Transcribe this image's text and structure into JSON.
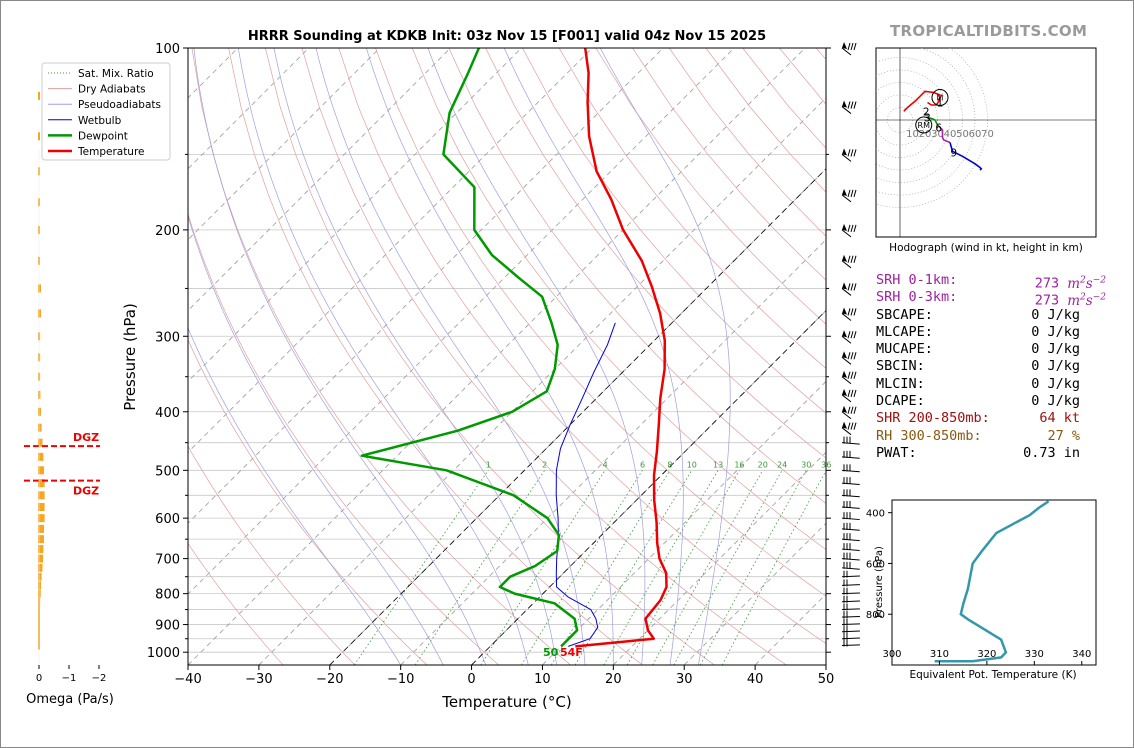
{
  "title": "HRRR Sounding at KDKB Init: 03z Nov 15 [F001] valid 04z Nov 15 2025",
  "brand": "TROPICALTIDBITS.COM",
  "legend": {
    "items": [
      {
        "label": "Sat. Mix. Ratio",
        "color": "#3a9a3a",
        "style": "dotted"
      },
      {
        "label": "Dry Adiabats",
        "color": "#e0a0a0",
        "style": "solid"
      },
      {
        "label": "Pseudoadiabats",
        "color": "#a0a0e0",
        "style": "solid"
      },
      {
        "label": "Wetbulb",
        "color": "#0000dd",
        "style": "solid"
      },
      {
        "label": "Dewpoint",
        "color": "#009900",
        "style": "solid"
      },
      {
        "label": "Temperature",
        "color": "#ee0000",
        "style": "solid"
      }
    ]
  },
  "surface_labels": {
    "dewpoint": "50",
    "temperature": "54F"
  },
  "mixing_ratio_labels": [
    "1",
    "2",
    "4",
    "6",
    "8",
    "10",
    "13",
    "16",
    "20",
    "24",
    "30",
    "36"
  ],
  "omega": {
    "xlabel": "Omega (Pa/s)",
    "ticks": [
      "0",
      "−1",
      "−2"
    ],
    "dgz_label": "DGZ"
  },
  "hodograph": {
    "caption": "Hodograph (wind in kt, height in km)",
    "ring_labels": [
      "10",
      "20",
      "30",
      "40",
      "50",
      "60",
      "70"
    ],
    "height_labels": [
      "1",
      "2",
      "3",
      "6",
      "9"
    ],
    "markers": [
      "M",
      "RM"
    ]
  },
  "stats": [
    {
      "label": "SRH 0-1km:",
      "value": "273",
      "unit": "m2s-2",
      "color": "#a020a0"
    },
    {
      "label": "SRH 0-3km:",
      "value": "273",
      "unit": "m2s-2",
      "color": "#a020a0"
    },
    {
      "label": "SBCAPE:",
      "value": "0 J/kg",
      "color": "#000000"
    },
    {
      "label": "MLCAPE:",
      "value": "0 J/kg",
      "color": "#000000"
    },
    {
      "label": "MUCAPE:",
      "value": "0 J/kg",
      "color": "#000000"
    },
    {
      "label": "SBCIN:",
      "value": "0 J/kg",
      "color": "#000000"
    },
    {
      "label": "MLCIN:",
      "value": "0 J/kg",
      "color": "#000000"
    },
    {
      "label": "DCAPE:",
      "value": "0 J/kg",
      "color": "#000000"
    },
    {
      "label": "SHR 200-850mb:",
      "value": "64 kt",
      "color": "#a01010"
    },
    {
      "label": "RH 300-850mb:",
      "value": "27 %",
      "color": "#8a5a10"
    },
    {
      "label": "PWAT:",
      "value": "0.73 in",
      "color": "#000000"
    }
  ],
  "chart_data": [
    {
      "type": "line",
      "title": "HRRR Sounding at KDKB Init: 03z Nov 15 [F001] valid 04z Nov 15 2025",
      "xlabel": "Temperature (°C)",
      "ylabel": "Pressure (hPa)",
      "xlim": [
        -40,
        50
      ],
      "ylim": [
        1050,
        100
      ],
      "y_scale": "log",
      "x_ticks": [
        "−40",
        "−30",
        "−20",
        "−10",
        "0",
        "10",
        "20",
        "30",
        "40",
        "50"
      ],
      "y_ticks": [
        "100",
        "200",
        "300",
        "400",
        "500",
        "600",
        "700",
        "800",
        "900",
        "1000"
      ],
      "skew": true,
      "legend_position": "top-left",
      "series": [
        {
          "name": "Temperature",
          "color": "#ee0000",
          "points": [
            [
              12,
              978
            ],
            [
              22,
              950
            ],
            [
              20,
              920
            ],
            [
              18,
              880
            ],
            [
              17.5,
              820
            ],
            [
              16.5,
              780
            ],
            [
              14.5,
              740
            ],
            [
              11.5,
              700
            ],
            [
              9,
              660
            ],
            [
              6,
              610
            ],
            [
              2.5,
              560
            ],
            [
              -1,
              510
            ],
            [
              -4,
              465
            ],
            [
              -7.5,
              420
            ],
            [
              -11,
              380
            ],
            [
              -14.5,
              340
            ],
            [
              -18.5,
              305
            ],
            [
              -23,
              275
            ],
            [
              -28,
              248
            ],
            [
              -33,
              225
            ],
            [
              -40,
              200
            ],
            [
              -46,
              178
            ],
            [
              -52,
              160
            ],
            [
              -58,
              140
            ],
            [
              -63,
              123
            ],
            [
              -67,
              110
            ],
            [
              -71,
              100
            ]
          ]
        },
        {
          "name": "Dewpoint",
          "color": "#009900",
          "points": [
            [
              10,
              978
            ],
            [
              10,
              950
            ],
            [
              10,
              920
            ],
            [
              8,
              880
            ],
            [
              3,
              830
            ],
            [
              -4,
              800
            ],
            [
              -7,
              780
            ],
            [
              -7,
              750
            ],
            [
              -5,
              720
            ],
            [
              -4,
              680
            ],
            [
              -6,
              640
            ],
            [
              -10,
              600
            ],
            [
              -18,
              550
            ],
            [
              -31,
              500
            ],
            [
              -45,
              473
            ],
            [
              -35,
              430
            ],
            [
              -30,
              400
            ],
            [
              -28,
              370
            ],
            [
              -30,
              340
            ],
            [
              -33,
              310
            ],
            [
              -37,
              285
            ],
            [
              -42,
              258
            ],
            [
              -48,
              240
            ],
            [
              -55,
              220
            ],
            [
              -61,
              200
            ],
            [
              -67,
              170
            ],
            [
              -76,
              150
            ],
            [
              -81,
              128
            ],
            [
              -84,
              110
            ],
            [
              -86,
              100
            ]
          ]
        },
        {
          "name": "Wetbulb",
          "color": "#0000dd",
          "points": [
            [
              11,
              978
            ],
            [
              13,
              950
            ],
            [
              12.5,
              910
            ],
            [
              11,
              880
            ],
            [
              9,
              850
            ],
            [
              4,
              810
            ],
            [
              1,
              780
            ],
            [
              -1,
              740
            ],
            [
              -3,
              700
            ],
            [
              -5.5,
              650
            ],
            [
              -8.5,
              600
            ],
            [
              -12,
              550
            ],
            [
              -15.5,
              500
            ],
            [
              -18,
              460
            ],
            [
              -20,
              420
            ],
            [
              -22,
              380
            ],
            [
              -24,
              345
            ],
            [
              -26,
              310
            ],
            [
              -28,
              285
            ]
          ]
        }
      ]
    },
    {
      "type": "bar",
      "xlabel": "Omega (Pa/s)",
      "xlim": [
        0.2,
        -2
      ],
      "y": [
        120,
        140,
        160,
        180,
        200,
        225,
        250,
        275,
        300,
        325,
        350,
        375,
        400,
        425,
        450,
        475,
        500,
        525,
        550,
        575,
        600,
        625,
        650,
        675,
        700,
        725,
        750,
        775,
        800,
        825,
        850,
        875,
        900,
        925,
        950,
        975
      ],
      "values": [
        -0.02,
        -0.02,
        -0.03,
        -0.04,
        -0.05,
        -0.06,
        -0.1,
        -0.1,
        -0.07,
        -0.07,
        -0.07,
        -0.08,
        -0.1,
        -0.12,
        -0.15,
        -0.18,
        -0.2,
        -0.22,
        -0.22,
        -0.22,
        -0.22,
        -0.2,
        -0.2,
        -0.18,
        -0.17,
        -0.15,
        -0.12,
        -0.1,
        -0.09,
        -0.07,
        -0.05,
        -0.04,
        -0.03,
        -0.02,
        -0.01,
        -0.01
      ],
      "dgz_pressures": [
        456,
        520
      ]
    },
    {
      "type": "line",
      "caption": "Hodograph (wind in kt, height in km)",
      "unit": "kt",
      "rings": [
        10,
        20,
        30,
        40,
        50,
        60,
        70
      ],
      "segments": [
        {
          "color": "#ee0000",
          "points": [
            [
              3,
              7
            ],
            [
              6,
              10
            ],
            [
              12,
              15
            ],
            [
              20,
              23
            ],
            [
              27,
              22
            ],
            [
              32,
              20
            ],
            [
              32,
              18
            ],
            [
              31,
              15
            ],
            [
              29,
              12
            ],
            [
              25,
              12
            ],
            [
              22,
              14
            ]
          ]
        },
        {
          "color": "#009900",
          "points": [
            [
              22,
              2
            ],
            [
              26,
              1
            ],
            [
              28,
              0
            ],
            [
              29,
              -2
            ],
            [
              30,
              -4
            ]
          ]
        },
        {
          "color": "#aa22aa",
          "points": [
            [
              30,
              -4
            ],
            [
              34,
              -8
            ],
            [
              34,
              -14
            ],
            [
              35,
              -16
            ],
            [
              40,
              -18
            ]
          ]
        },
        {
          "color": "#0000dd",
          "points": [
            [
              40,
              -18
            ],
            [
              42,
              -25
            ],
            [
              50,
              -29
            ],
            [
              60,
              -35
            ],
            [
              64,
              -38
            ],
            [
              65,
              -39
            ],
            [
              64,
              -40
            ]
          ]
        }
      ],
      "height_points": [
        {
          "label": "1",
          "u": 32,
          "v": 14
        },
        {
          "label": "2",
          "u": 21,
          "v": 7
        },
        {
          "label": "3",
          "u": 22,
          "v": 2
        },
        {
          "label": "6",
          "u": 31,
          "v": -6
        },
        {
          "label": "9",
          "u": 43,
          "v": -26
        }
      ],
      "storm_motion": [
        {
          "label": "M",
          "u": 32,
          "v": 18
        },
        {
          "label": "RM",
          "u": 19,
          "v": -4
        }
      ]
    },
    {
      "type": "line",
      "xlabel": "Equivalent Pot. Temperature (K)",
      "ylabel": "Pressure (hPa)",
      "xlim": [
        300,
        343
      ],
      "ylim": [
        1000,
        350
      ],
      "x_ticks": [
        "300",
        "310",
        "320",
        "330",
        "340"
      ],
      "y_ticks": [
        "400",
        "600",
        "800"
      ],
      "series": [
        {
          "name": "Theta-E",
          "color": "#3399aa",
          "points": [
            [
              309,
              985
            ],
            [
              317,
              985
            ],
            [
              323,
              970
            ],
            [
              324,
              950
            ],
            [
              323,
              900
            ],
            [
              316,
              820
            ],
            [
              314.5,
              800
            ],
            [
              315,
              760
            ],
            [
              316,
              700
            ],
            [
              316.5,
              650
            ],
            [
              317,
              600
            ],
            [
              319,
              550
            ],
            [
              322,
              480
            ],
            [
              326,
              440
            ],
            [
              329,
              410
            ],
            [
              331,
              380
            ],
            [
              333,
              355
            ]
          ]
        }
      ]
    }
  ]
}
